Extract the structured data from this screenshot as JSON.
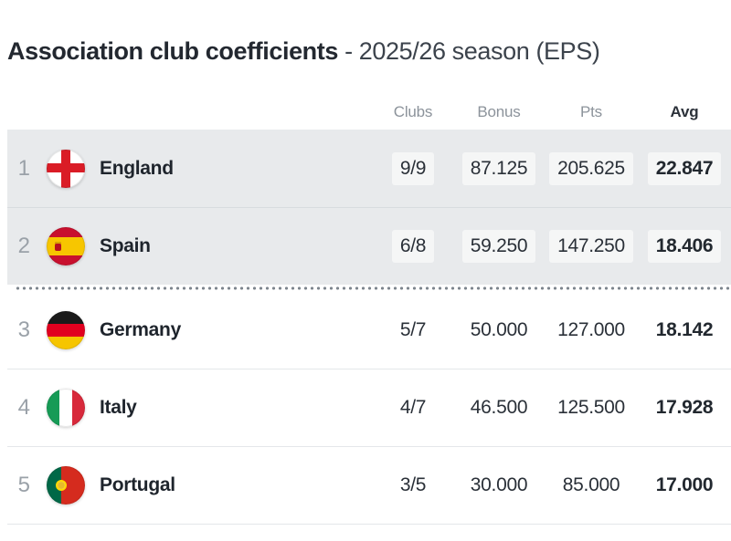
{
  "title": {
    "main": "Association club coefficients",
    "suffix": " - 2025/26 season (EPS)"
  },
  "table": {
    "headers": {
      "clubs": "Clubs",
      "bonus": "Bonus",
      "pts": "Pts",
      "avg": "Avg"
    },
    "rows": [
      {
        "rank": "1",
        "country": "England",
        "flag": "england",
        "flag_icon": "england-flag-icon",
        "clubs": "9/9",
        "bonus": "87.125",
        "pts": "205.625",
        "avg": "22.847",
        "highlighted": true
      },
      {
        "rank": "2",
        "country": "Spain",
        "flag": "spain",
        "flag_icon": "spain-flag-icon",
        "clubs": "6/8",
        "bonus": "59.250",
        "pts": "147.250",
        "avg": "18.406",
        "highlighted": true
      },
      {
        "rank": "3",
        "country": "Germany",
        "flag": "germany",
        "flag_icon": "germany-flag-icon",
        "clubs": "5/7",
        "bonus": "50.000",
        "pts": "127.000",
        "avg": "18.142",
        "highlighted": false
      },
      {
        "rank": "4",
        "country": "Italy",
        "flag": "italy",
        "flag_icon": "italy-flag-icon",
        "clubs": "4/7",
        "bonus": "46.500",
        "pts": "125.500",
        "avg": "17.928",
        "highlighted": false
      },
      {
        "rank": "5",
        "country": "Portugal",
        "flag": "portugal",
        "flag_icon": "portugal-flag-icon",
        "clubs": "3/5",
        "bonus": "30.000",
        "pts": "85.000",
        "avg": "17.000",
        "highlighted": false
      }
    ],
    "separator_after_rank": 2
  },
  "colors": {
    "highlight_row_bg": "#e8eaec",
    "header_text": "#8c939b",
    "rank_text": "#9aa1a8",
    "value_text": "#2a3038",
    "dotted_separator": "#7e868e"
  }
}
